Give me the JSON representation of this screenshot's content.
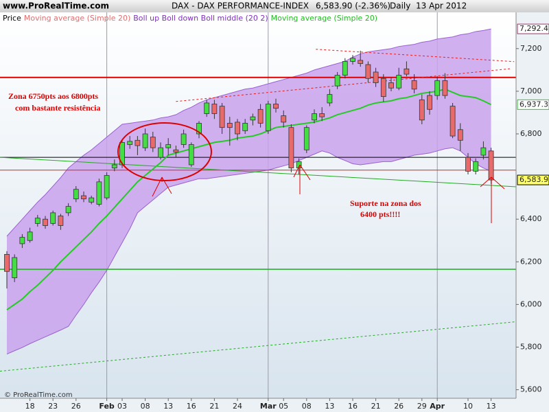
{
  "header": {
    "site": "www.ProRealTime.com",
    "footer": "© ProRealTime.com"
  },
  "chart_data": {
    "type": "candlestick",
    "title": "DAX - DAX PERFORMANCE-INDEX",
    "quote": "6,583.90 (-2.36%)",
    "period": "Daily",
    "date": "13 Apr 2012",
    "legend": [
      {
        "text": "Price",
        "color": "#000000"
      },
      {
        "text": "Moving average (Simple 20)",
        "color": "#e07070"
      },
      {
        "text": "Boll up Boll down Boll middle (20 2)",
        "color": "#8030c0"
      },
      {
        "text": "Moving average (Simple 20)",
        "color": "#22bb22"
      }
    ],
    "annotations": [
      {
        "text": "Zona 6750pts aos 6800pts",
        "color": "#dd0000"
      },
      {
        "text": "com bastante resistência",
        "color": "#dd0000"
      },
      {
        "text": "Suporte na zona dos",
        "color": "#dd0000"
      },
      {
        "text": "6400 pts!!!!",
        "color": "#dd0000"
      }
    ],
    "categories": [
      null,
      null,
      null,
      "18",
      null,
      null,
      "23",
      null,
      null,
      "26",
      null,
      null,
      null,
      "Feb",
      null,
      "03",
      null,
      null,
      "08",
      null,
      null,
      "13",
      null,
      null,
      "16",
      null,
      null,
      "21",
      null,
      null,
      "24",
      null,
      null,
      null,
      "Mar",
      null,
      "05",
      null,
      null,
      "08",
      null,
      null,
      "13",
      null,
      null,
      "16",
      null,
      null,
      "21",
      null,
      null,
      "26",
      null,
      null,
      "29",
      null,
      "Apr",
      null,
      null,
      null,
      "10",
      null,
      null,
      "13"
    ],
    "open": [
      6235,
      6125,
      6285,
      6300,
      6380,
      6400,
      6380,
      6415,
      6430,
      6495,
      6510,
      6480,
      6470,
      6500,
      6640,
      6655,
      6750,
      6770,
      6735,
      6785,
      6690,
      6735,
      6725,
      6750,
      6655,
      6800,
      6895,
      6940,
      6930,
      6850,
      6855,
      6815,
      6865,
      6915,
      6815,
      6940,
      6885,
      6830,
      6640,
      6725,
      6865,
      6895,
      6945,
      7025,
      7075,
      7140,
      7145,
      7125,
      7090,
      7060,
      7040,
      7015,
      7105,
      7050,
      6960,
      6980,
      6980,
      7050,
      6930,
      6820,
      6690,
      6625,
      6700,
      6720
    ],
    "high": [
      6250,
      6235,
      6330,
      6360,
      6420,
      6415,
      6440,
      6425,
      6475,
      6555,
      6530,
      6510,
      6590,
      6620,
      6680,
      6775,
      6790,
      6790,
      6825,
      6810,
      6760,
      6780,
      6745,
      6820,
      6760,
      6860,
      6960,
      6960,
      6945,
      6880,
      6870,
      6870,
      6895,
      6940,
      6955,
      6965,
      6910,
      6845,
      6685,
      6840,
      6915,
      6925,
      7010,
      7090,
      7155,
      7170,
      7190,
      7140,
      7110,
      7080,
      7065,
      7110,
      7140,
      7080,
      6985,
      7000,
      7070,
      7085,
      6945,
      6850,
      6710,
      6685,
      6765,
      6735
    ],
    "low": [
      6075,
      6105,
      6265,
      6290,
      6365,
      6355,
      6370,
      6350,
      6415,
      6480,
      6480,
      6470,
      6460,
      6490,
      6625,
      6640,
      6730,
      6700,
      6720,
      6715,
      6680,
      6700,
      6690,
      6735,
      6645,
      6780,
      6880,
      6870,
      6800,
      6745,
      6770,
      6800,
      6840,
      6830,
      6800,
      6900,
      6830,
      6620,
      6610,
      6710,
      6850,
      6860,
      6930,
      7010,
      7060,
      7125,
      7115,
      7040,
      7020,
      6950,
      7000,
      7005,
      7070,
      6990,
      6845,
      6890,
      6960,
      6965,
      6780,
      6720,
      6610,
      6610,
      6680,
      6565
    ],
    "close": [
      6155,
      6220,
      6315,
      6340,
      6405,
      6370,
      6430,
      6370,
      6460,
      6540,
      6495,
      6500,
      6575,
      6605,
      6655,
      6760,
      6765,
      6745,
      6800,
      6735,
      6735,
      6750,
      6715,
      6800,
      6750,
      6850,
      6945,
      6895,
      6830,
      6830,
      6800,
      6850,
      6880,
      6850,
      6940,
      6920,
      6855,
      6640,
      6670,
      6830,
      6895,
      6880,
      6985,
      7075,
      7140,
      7155,
      7130,
      7060,
      7040,
      6975,
      7015,
      7075,
      7080,
      7010,
      6865,
      6915,
      7050,
      6980,
      6790,
      6770,
      6625,
      6670,
      6735,
      6583.9
    ],
    "last_label": "6,583.90",
    "up_color": "#44dd44",
    "down_color": "#e86a6a",
    "band": {
      "upper": [
        6320,
        6360,
        6400,
        6440,
        6480,
        6515,
        6555,
        6595,
        6640,
        6670,
        6700,
        6725,
        6755,
        6785,
        6815,
        6845,
        6850,
        6855,
        6860,
        6865,
        6875,
        6880,
        6890,
        6910,
        6925,
        6945,
        6960,
        6970,
        6980,
        6990,
        7000,
        7010,
        7015,
        7025,
        7035,
        7045,
        7055,
        7065,
        7075,
        7085,
        7100,
        7110,
        7120,
        7130,
        7140,
        7160,
        7175,
        7185,
        7190,
        7195,
        7200,
        7210,
        7215,
        7220,
        7230,
        7235,
        7245,
        7250,
        7255,
        7265,
        7270,
        7280,
        7285,
        7292.4
      ],
      "lower": [
        5767,
        5783,
        5798,
        5816,
        5832,
        5848,
        5864,
        5880,
        5897,
        5950,
        6000,
        6055,
        6105,
        6160,
        6225,
        6290,
        6355,
        6430,
        6460,
        6490,
        6520,
        6550,
        6560,
        6570,
        6580,
        6590,
        6590,
        6595,
        6600,
        6605,
        6610,
        6615,
        6620,
        6625,
        6630,
        6640,
        6650,
        6660,
        6675,
        6690,
        6705,
        6720,
        6710,
        6690,
        6675,
        6660,
        6655,
        6660,
        6665,
        6670,
        6670,
        6680,
        6690,
        6700,
        6705,
        6710,
        6720,
        6730,
        6735,
        6720,
        6690,
        6660,
        6640,
        6625
      ],
      "fill": "#c9a2ec",
      "line_color": "#9a60d0",
      "upper_label": "7,292.4"
    },
    "ma": {
      "values": [
        5975,
        6000,
        6025,
        6060,
        6090,
        6125,
        6160,
        6200,
        6235,
        6270,
        6305,
        6340,
        6380,
        6415,
        6455,
        6495,
        6535,
        6575,
        6605,
        6635,
        6665,
        6700,
        6710,
        6720,
        6730,
        6740,
        6750,
        6760,
        6765,
        6770,
        6780,
        6785,
        6790,
        6800,
        6815,
        6830,
        6835,
        6840,
        6845,
        6850,
        6855,
        6865,
        6875,
        6890,
        6900,
        6910,
        6920,
        6935,
        6945,
        6950,
        6955,
        6965,
        6970,
        6980,
        6990,
        6995,
        7000,
        7010,
        6995,
        6980,
        6975,
        6970,
        6955,
        6937.3
      ],
      "color": "#22cc22",
      "last_label": "6,937.3"
    },
    "hlines": [
      {
        "value": 7065,
        "color": "#dd0000",
        "width": 2
      },
      {
        "value": 6690,
        "color": "#000000",
        "width": 1
      },
      {
        "value": 6630,
        "color": "#dd2222",
        "width": 1
      },
      {
        "value": 6165,
        "color": "#22aa22",
        "width": 1.5
      }
    ],
    "trendlines": [
      {
        "start": [
          -0.9,
          6690
        ],
        "end": [
          66.25,
          6552
        ],
        "color": "#22aa22",
        "dashed": false
      },
      {
        "start": [
          -0.9,
          5687
        ],
        "end": [
          66.25,
          5919
        ],
        "color": "#22aa22",
        "dashed": true
      },
      {
        "start": [
          22,
          6952
        ],
        "end": [
          65.6,
          7106
        ],
        "color": "#dd2222",
        "dashed": true
      },
      {
        "start": [
          40.2,
          7197
        ],
        "end": [
          66,
          7139
        ],
        "color": "#dd2222",
        "dashed": true
      }
    ],
    "ylim": [
      5560,
      7370
    ],
    "yticks": [
      {
        "value": 5600,
        "label": "5,600"
      },
      {
        "value": 5800,
        "label": "5,800"
      },
      {
        "value": 6000,
        "label": "6,000"
      },
      {
        "value": 6200,
        "label": "6,200"
      },
      {
        "value": 6400,
        "label": "6,400"
      },
      {
        "value": 6800,
        "label": "6,800"
      },
      {
        "value": 7000,
        "label": "7,000"
      },
      {
        "value": 7200,
        "label": "7,200"
      }
    ],
    "grid": false
  }
}
